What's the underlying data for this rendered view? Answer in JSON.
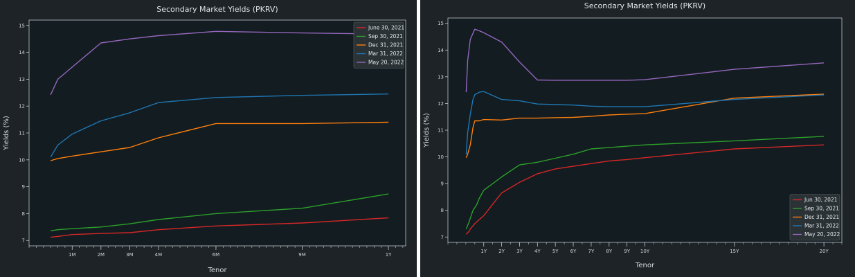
{
  "colors": {
    "June 30, 2021": "#d62728",
    "Jun 30, 2021": "#d62728",
    "Sep 30, 2021": "#2ca02c",
    "Dec 31, 2021": "#ff7f0e",
    "Mar 31, 2022": "#1f77b4",
    "May 20, 2022": "#9467bd",
    "plot_bg": "#131c20",
    "panel_bg": "#1d2327",
    "axis": "#bfc5cb"
  },
  "chart_data": [
    {
      "type": "line",
      "title": "Secondary Market Yields (PKRV)",
      "xlabel": "Tenor",
      "ylabel": "Yields (%)",
      "x_unit": "months",
      "xlim": [
        -0.5,
        12.6
      ],
      "ylim": [
        6.8,
        15.2
      ],
      "yticks": [
        7,
        8,
        9,
        10,
        11,
        12,
        13,
        14,
        15
      ],
      "xticks": [
        {
          "x": 1,
          "label": "1M"
        },
        {
          "x": 2,
          "label": "2M"
        },
        {
          "x": 3,
          "label": "3M"
        },
        {
          "x": 4,
          "label": "4M"
        },
        {
          "x": 6,
          "label": "6M"
        },
        {
          "x": 9,
          "label": "9M"
        },
        {
          "x": 12,
          "label": "1Y"
        }
      ],
      "legend_position": "top-right",
      "grid": false,
      "x": [
        0.25,
        0.5,
        1,
        2,
        3,
        4,
        6,
        9,
        12
      ],
      "series": [
        {
          "name": "June 30, 2021",
          "values": [
            7.12,
            7.15,
            7.22,
            7.26,
            7.29,
            7.4,
            7.54,
            7.65,
            7.84
          ]
        },
        {
          "name": "Sep 30, 2021",
          "values": [
            7.36,
            7.4,
            7.44,
            7.5,
            7.62,
            7.78,
            8.0,
            8.2,
            8.73
          ]
        },
        {
          "name": "Dec 31, 2021",
          "values": [
            9.97,
            10.05,
            10.14,
            10.3,
            10.46,
            10.82,
            11.35,
            11.35,
            11.4
          ]
        },
        {
          "name": "Mar 31, 2022",
          "values": [
            10.1,
            10.55,
            10.96,
            11.45,
            11.75,
            12.13,
            12.32,
            12.4,
            12.45
          ]
        },
        {
          "name": "May 20, 2022",
          "values": [
            12.42,
            13.0,
            13.45,
            14.35,
            14.5,
            14.62,
            14.78,
            14.72,
            14.68
          ]
        }
      ]
    },
    {
      "type": "line",
      "title": "Secondary Market Yields (PKRV)",
      "xlabel": "Tenor",
      "ylabel": "Yields (%)",
      "x_unit": "years",
      "xlim": [
        -1,
        21
      ],
      "ylim": [
        6.8,
        15.2
      ],
      "yticks": [
        7,
        8,
        9,
        10,
        11,
        12,
        13,
        14,
        15
      ],
      "xticks": [
        {
          "x": 1,
          "label": "1Y"
        },
        {
          "x": 2,
          "label": "2Y"
        },
        {
          "x": 3,
          "label": "3Y"
        },
        {
          "x": 4,
          "label": "4Y"
        },
        {
          "x": 5,
          "label": "5Y"
        },
        {
          "x": 6,
          "label": "6Y"
        },
        {
          "x": 7,
          "label": "7Y"
        },
        {
          "x": 8,
          "label": "8Y"
        },
        {
          "x": 9,
          "label": "9Y"
        },
        {
          "x": 10,
          "label": "10Y"
        },
        {
          "x": 15,
          "label": "15Y"
        },
        {
          "x": 20,
          "label": "20Y"
        }
      ],
      "legend_position": "bottom-right",
      "grid": false,
      "series": [
        {
          "name": "Jun 30, 2021",
          "x": [
            0.02,
            0.08,
            0.17,
            0.25,
            0.5,
            1,
            2,
            3,
            4,
            5,
            6,
            7,
            8,
            9,
            10,
            15,
            20
          ],
          "values": [
            7.1,
            7.15,
            7.2,
            7.3,
            7.5,
            7.8,
            8.65,
            9.05,
            9.37,
            9.55,
            9.65,
            9.75,
            9.85,
            9.9,
            9.97,
            10.3,
            10.45
          ]
        },
        {
          "name": "Sep 30, 2021",
          "x": [
            0.02,
            0.08,
            0.17,
            0.25,
            0.4,
            0.6,
            0.75,
            1,
            2,
            3,
            4,
            5,
            6,
            7,
            8,
            9,
            10,
            15,
            20
          ],
          "values": [
            7.3,
            7.4,
            7.55,
            7.7,
            8.0,
            8.2,
            8.45,
            8.75,
            9.25,
            9.7,
            9.8,
            9.95,
            10.1,
            10.3,
            10.35,
            10.4,
            10.45,
            10.6,
            10.77
          ]
        },
        {
          "name": "Dec 31, 2021",
          "x": [
            0.02,
            0.1,
            0.25,
            0.4,
            0.5,
            0.75,
            1,
            2,
            3,
            4,
            5,
            6,
            7,
            8,
            9,
            10,
            15,
            20
          ],
          "values": [
            9.97,
            10.1,
            10.45,
            11.1,
            11.35,
            11.35,
            11.4,
            11.38,
            11.45,
            11.45,
            11.47,
            11.48,
            11.52,
            11.57,
            11.6,
            11.62,
            12.2,
            12.35
          ]
        },
        {
          "name": "Mar 31, 2022",
          "x": [
            0.02,
            0.1,
            0.25,
            0.4,
            0.5,
            0.75,
            1,
            2,
            3,
            4,
            5,
            6,
            7,
            8,
            9,
            10,
            15,
            20
          ],
          "values": [
            10.1,
            10.9,
            11.6,
            12.15,
            12.33,
            12.42,
            12.45,
            12.15,
            12.1,
            11.98,
            11.96,
            11.94,
            11.9,
            11.88,
            11.88,
            11.88,
            12.15,
            12.32
          ]
        },
        {
          "name": "May 20, 2022",
          "x": [
            0.02,
            0.1,
            0.25,
            0.5,
            0.75,
            1,
            2,
            3,
            4,
            5,
            6,
            7,
            8,
            9,
            10,
            15,
            20
          ],
          "values": [
            12.42,
            13.6,
            14.4,
            14.78,
            14.72,
            14.65,
            14.3,
            13.55,
            12.88,
            12.87,
            12.87,
            12.87,
            12.87,
            12.87,
            12.89,
            13.28,
            13.52
          ]
        }
      ]
    }
  ]
}
